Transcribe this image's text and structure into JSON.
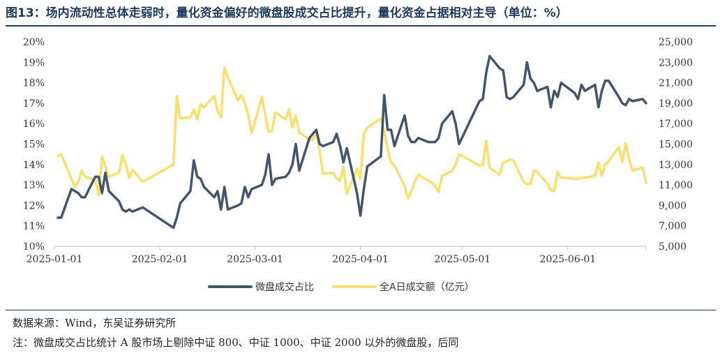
{
  "title": "图13：场内流动性总体走弱时，量化资金偏好的微盘股成交占比提升，量化资金占据相对主导（单位：%）",
  "footnotes": {
    "source": "数据来源：Wind，东吴证券研究所",
    "note": "注：微盘成交占比统计 A 股市场上剔除中证 800、中证 1000、中证 2000 以外的微盘股，后同"
  },
  "chart_data": {
    "type": "line",
    "x_tick_labels": [
      "2025-01-01",
      "2025-02-01",
      "2025-03-01",
      "2025-04-01",
      "2025-05-01",
      "2025-06-01"
    ],
    "x_tick_dates": [
      "2025-01-01",
      "2025-02-01",
      "2025-03-01",
      "2025-04-01",
      "2025-05-01",
      "2025-06-01"
    ],
    "xlim": [
      "2025-01-01",
      "2025-06-24"
    ],
    "left_axis": {
      "ylim": [
        10,
        20
      ],
      "ticks": [
        10,
        11,
        12,
        13,
        14,
        15,
        16,
        17,
        18,
        19,
        20
      ],
      "tick_labels": [
        "10%",
        "11%",
        "12%",
        "13%",
        "14%",
        "15%",
        "16%",
        "17%",
        "18%",
        "19%",
        "20%"
      ]
    },
    "right_axis": {
      "ylim": [
        5000,
        25000
      ],
      "ticks": [
        5000,
        7000,
        9000,
        11000,
        13000,
        15000,
        17000,
        19000,
        21000,
        23000,
        25000
      ],
      "tick_labels": [
        "5,000",
        "7,000",
        "9,000",
        "11,000",
        "13,000",
        "15,000",
        "17,000",
        "19,000",
        "21,000",
        "23,000",
        "25,000"
      ]
    },
    "grid": false,
    "legend_position": "bottom",
    "series": [
      {
        "name": "微盘成交占比",
        "axis": "left",
        "color": "#44546a",
        "x": [
          "2025-01-02",
          "2025-01-03",
          "2025-01-06",
          "2025-01-07",
          "2025-01-08",
          "2025-01-09",
          "2025-01-10",
          "2025-01-13",
          "2025-01-14",
          "2025-01-15",
          "2025-01-16",
          "2025-01-17",
          "2025-01-20",
          "2025-01-21",
          "2025-01-22",
          "2025-01-23",
          "2025-01-24",
          "2025-01-27",
          "2025-02-05",
          "2025-02-06",
          "2025-02-07",
          "2025-02-10",
          "2025-02-11",
          "2025-02-12",
          "2025-02-13",
          "2025-02-14",
          "2025-02-17",
          "2025-02-18",
          "2025-02-19",
          "2025-02-20",
          "2025-02-21",
          "2025-02-24",
          "2025-02-25",
          "2025-02-26",
          "2025-02-27",
          "2025-02-28",
          "2025-03-03",
          "2025-03-04",
          "2025-03-05",
          "2025-03-06",
          "2025-03-07",
          "2025-03-10",
          "2025-03-11",
          "2025-03-12",
          "2025-03-13",
          "2025-03-14",
          "2025-03-17",
          "2025-03-18",
          "2025-03-19",
          "2025-03-20",
          "2025-03-21",
          "2025-03-24",
          "2025-03-25",
          "2025-03-26",
          "2025-03-27",
          "2025-03-28",
          "2025-03-31",
          "2025-04-01",
          "2025-04-02",
          "2025-04-03",
          "2025-04-07",
          "2025-04-08",
          "2025-04-09",
          "2025-04-10",
          "2025-04-11",
          "2025-04-14",
          "2025-04-15",
          "2025-04-16",
          "2025-04-17",
          "2025-04-18",
          "2025-04-21",
          "2025-04-22",
          "2025-04-23",
          "2025-04-24",
          "2025-04-25",
          "2025-04-28",
          "2025-04-29",
          "2025-04-30",
          "2025-05-06",
          "2025-05-07",
          "2025-05-08",
          "2025-05-09",
          "2025-05-12",
          "2025-05-13",
          "2025-05-14",
          "2025-05-15",
          "2025-05-16",
          "2025-05-19",
          "2025-05-20",
          "2025-05-21",
          "2025-05-22",
          "2025-05-23",
          "2025-05-26",
          "2025-05-27",
          "2025-05-28",
          "2025-05-29",
          "2025-05-30",
          "2025-06-03",
          "2025-06-04",
          "2025-06-05",
          "2025-06-06",
          "2025-06-09",
          "2025-06-10",
          "2025-06-11",
          "2025-06-12",
          "2025-06-13",
          "2025-06-16",
          "2025-06-17",
          "2025-06-18",
          "2025-06-19",
          "2025-06-20",
          "2025-06-23",
          "2025-06-24"
        ],
        "values": [
          11.4,
          11.4,
          12.8,
          12.7,
          12.6,
          12.4,
          12.4,
          13.4,
          13.4,
          12.6,
          13.6,
          12.7,
          12.2,
          11.8,
          11.7,
          11.8,
          11.7,
          11.9,
          10.9,
          11.4,
          12.1,
          12.7,
          14.2,
          13.4,
          13.3,
          12.9,
          12.4,
          12.7,
          11.8,
          12.9,
          11.8,
          12.0,
          12.1,
          12.9,
          12.4,
          12.8,
          13.0,
          13.5,
          14.5,
          13.0,
          13.3,
          13.4,
          13.6,
          14.0,
          15.0,
          13.7,
          15.3,
          15.5,
          15.7,
          15.0,
          14.9,
          15.1,
          15.5,
          14.9,
          14.1,
          14.8,
          12.6,
          11.5,
          12.8,
          13.9,
          14.4,
          17.4,
          15.7,
          15.7,
          14.9,
          16.4,
          15.4,
          15.1,
          15.1,
          15.3,
          15.1,
          15.1,
          15.1,
          15.3,
          16.0,
          16.6,
          16.0,
          15.0,
          17.1,
          17.2,
          18.5,
          19.3,
          18.7,
          18.6,
          17.3,
          17.2,
          17.3,
          17.9,
          19.0,
          18.2,
          18.0,
          17.6,
          17.8,
          16.8,
          17.6,
          17.3,
          18.0,
          17.5,
          17.2,
          17.9,
          17.6,
          17.9,
          16.8,
          17.6,
          18.1,
          18.1,
          17.3,
          17.0,
          16.9,
          17.2,
          17.1,
          17.2,
          17.0
        ]
      },
      {
        "name": "全A日成交额（亿元）",
        "axis": "right",
        "color": "#fadf6c",
        "x": [
          "2025-01-02",
          "2025-01-03",
          "2025-01-06",
          "2025-01-07",
          "2025-01-08",
          "2025-01-09",
          "2025-01-10",
          "2025-01-13",
          "2025-01-14",
          "2025-01-15",
          "2025-01-16",
          "2025-01-17",
          "2025-01-20",
          "2025-01-21",
          "2025-01-22",
          "2025-01-23",
          "2025-01-24",
          "2025-01-27",
          "2025-02-05",
          "2025-02-06",
          "2025-02-07",
          "2025-02-10",
          "2025-02-11",
          "2025-02-12",
          "2025-02-13",
          "2025-02-14",
          "2025-02-17",
          "2025-02-18",
          "2025-02-19",
          "2025-02-20",
          "2025-02-21",
          "2025-02-24",
          "2025-02-25",
          "2025-02-26",
          "2025-02-27",
          "2025-02-28",
          "2025-03-03",
          "2025-03-04",
          "2025-03-05",
          "2025-03-06",
          "2025-03-07",
          "2025-03-10",
          "2025-03-11",
          "2025-03-12",
          "2025-03-13",
          "2025-03-14",
          "2025-03-17",
          "2025-03-18",
          "2025-03-19",
          "2025-03-20",
          "2025-03-21",
          "2025-03-24",
          "2025-03-25",
          "2025-03-26",
          "2025-03-27",
          "2025-03-28",
          "2025-03-31",
          "2025-04-01",
          "2025-04-02",
          "2025-04-03",
          "2025-04-07",
          "2025-04-08",
          "2025-04-09",
          "2025-04-10",
          "2025-04-11",
          "2025-04-14",
          "2025-04-15",
          "2025-04-16",
          "2025-04-17",
          "2025-04-18",
          "2025-04-21",
          "2025-04-22",
          "2025-04-23",
          "2025-04-24",
          "2025-04-25",
          "2025-04-28",
          "2025-04-29",
          "2025-04-30",
          "2025-05-06",
          "2025-05-07",
          "2025-05-08",
          "2025-05-09",
          "2025-05-12",
          "2025-05-13",
          "2025-05-14",
          "2025-05-15",
          "2025-05-16",
          "2025-05-19",
          "2025-05-20",
          "2025-05-21",
          "2025-05-22",
          "2025-05-23",
          "2025-05-26",
          "2025-05-27",
          "2025-05-28",
          "2025-05-29",
          "2025-05-30",
          "2025-06-03",
          "2025-06-04",
          "2025-06-05",
          "2025-06-06",
          "2025-06-09",
          "2025-06-10",
          "2025-06-11",
          "2025-06-12",
          "2025-06-13",
          "2025-06-16",
          "2025-06-17",
          "2025-06-18",
          "2025-06-19",
          "2025-06-20",
          "2025-06-23",
          "2025-06-24"
        ],
        "values": [
          13.8,
          14.0,
          11.6,
          10.8,
          11.3,
          12.4,
          11.8,
          11.5,
          10.0,
          13.8,
          12.8,
          11.8,
          12.2,
          13.9,
          13.0,
          11.7,
          12.5,
          11.3,
          13.0,
          19.7,
          17.5,
          17.6,
          18.4,
          17.4,
          18.9,
          18.6,
          19.7,
          18.3,
          17.6,
          22.5,
          21.5,
          19.3,
          19.8,
          19.0,
          17.8,
          16.1,
          19.6,
          17.9,
          16.2,
          16.3,
          18.1,
          17.4,
          18.4,
          16.6,
          17.8,
          16.1,
          15.5,
          15.4,
          16.2,
          14.3,
          12.1,
          12.2,
          11.6,
          11.4,
          12.8,
          10.1,
          12.6,
          11.6,
          16.0,
          16.6,
          17.5,
          16.2,
          14.5,
          13.2,
          12.9,
          10.9,
          9.7,
          10.4,
          11.3,
          12.0,
          11.4,
          11.2,
          10.9,
          10.3,
          11.9,
          12.4,
          13.0,
          14.0,
          12.9,
          13.0,
          15.3,
          12.7,
          12.0,
          13.2,
          13.3,
          13.5,
          13.4,
          11.3,
          11.1,
          11.1,
          12.4,
          12.3,
          11.1,
          10.5,
          10.4,
          12.3,
          11.7,
          11.6,
          11.6,
          11.7,
          11.7,
          11.9,
          13.2,
          11.9,
          13.0,
          13.3,
          14.7,
          13.2,
          15.1,
          13.5,
          12.4,
          12.7,
          11.2
        ]
      }
    ]
  }
}
